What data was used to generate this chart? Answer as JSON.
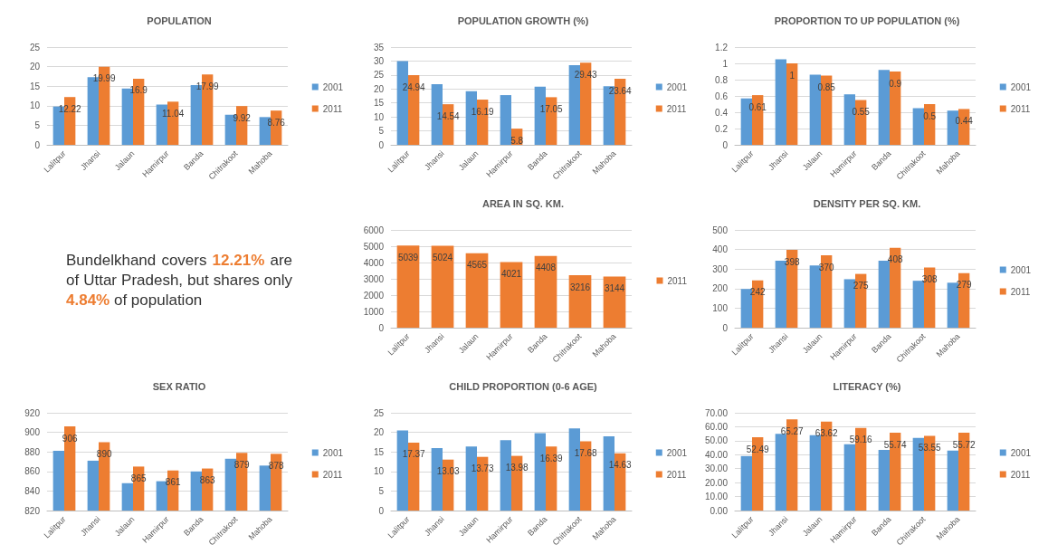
{
  "chart_data": [
    {
      "type": "bar",
      "title": "POPULATION",
      "categories": [
        "Lalitpur",
        "Jhansi",
        "Jalaun",
        "Hamirpur",
        "Banda",
        "Chitrakoot",
        "Mahoba"
      ],
      "series": [
        {
          "name": "2001",
          "color": "#5b9bd5",
          "values": [
            9.8,
            17.3,
            14.4,
            10.3,
            15.3,
            7.7,
            7.1
          ]
        },
        {
          "name": "2011",
          "color": "#ed7d31",
          "values": [
            12.22,
            19.99,
            16.9,
            11.04,
            17.99,
            9.92,
            8.76
          ],
          "value_labels": [
            "12.22",
            "19.99",
            "16.9",
            "11.04",
            "17.99",
            "9.92",
            "8.76"
          ]
        }
      ],
      "ylim": [
        0,
        25
      ],
      "yticks": [
        0,
        5,
        10,
        15,
        20,
        25
      ],
      "grid": "y",
      "legend": "right"
    },
    {
      "type": "bar",
      "title": "POPULATION GROWTH (%)",
      "categories": [
        "Lalitpur",
        "Jhansi",
        "Jalaun",
        "Hamirpur",
        "Banda",
        "Chitrakoot",
        "Mahoba"
      ],
      "series": [
        {
          "name": "2001",
          "color": "#5b9bd5",
          "values": [
            30,
            21.7,
            19.2,
            17.8,
            20.8,
            28.5,
            21
          ]
        },
        {
          "name": "2011",
          "color": "#ed7d31",
          "values": [
            24.94,
            14.54,
            16.19,
            5.8,
            17.05,
            29.43,
            23.64
          ],
          "value_labels": [
            "24.94",
            "14.54",
            "16.19",
            "5.8",
            "17.05",
            "29.43",
            "23.64"
          ]
        }
      ],
      "ylim": [
        0,
        35
      ],
      "yticks": [
        0,
        5,
        10,
        15,
        20,
        25,
        30,
        35
      ],
      "grid": "y",
      "legend": "right"
    },
    {
      "type": "bar",
      "title": "PROPORTION TO UP POPULATION (%)",
      "categories": [
        "Lalitpur",
        "Jhansi",
        "Jalaun",
        "Hamirpur",
        "Banda",
        "Chitrakoot",
        "Mahoba"
      ],
      "series": [
        {
          "name": "2001",
          "color": "#5b9bd5",
          "values": [
            0.57,
            1.05,
            0.86,
            0.62,
            0.92,
            0.45,
            0.42
          ]
        },
        {
          "name": "2011",
          "color": "#ed7d31",
          "values": [
            0.61,
            1,
            0.85,
            0.55,
            0.9,
            0.5,
            0.44
          ],
          "value_labels": [
            "0.61",
            "1",
            "0.85",
            "0.55",
            "0.9",
            "0.5",
            "0.44"
          ]
        }
      ],
      "ylim": [
        0,
        1.2
      ],
      "yticks": [
        0,
        0.2,
        0.4,
        0.6,
        0.8,
        1,
        1.2
      ],
      "grid": "y",
      "legend": "right"
    },
    {
      "type": "other",
      "annotations": [
        "Bundelkhand covers 12.21% are of Uttar Pradesh, but shares only 4.84% of population"
      ]
    },
    {
      "type": "bar",
      "title": "AREA IN SQ. KM.",
      "categories": [
        "Lalitpur",
        "Jhansi",
        "Jalaun",
        "Hamirpur",
        "Banda",
        "Chitrakoot",
        "Mahoba"
      ],
      "series": [
        {
          "name": "2011",
          "color": "#ed7d31",
          "values": [
            5039,
            5024,
            4565,
            4021,
            4408,
            3216,
            3144
          ]
        }
      ],
      "data_labels": true,
      "ylim": [
        0,
        6000
      ],
      "yticks": [
        0,
        1000,
        2000,
        3000,
        4000,
        5000,
        6000
      ],
      "grid": "y",
      "legend": "right"
    },
    {
      "type": "bar",
      "title": "DENSITY PER SQ. KM.",
      "categories": [
        "Lalitpur",
        "Jhansi",
        "Jalaun",
        "Hamirpur",
        "Banda",
        "Chitrakoot",
        "Mahoba"
      ],
      "series": [
        {
          "name": "2001",
          "color": "#5b9bd5",
          "values": [
            198,
            343,
            318,
            248,
            343,
            240,
            230
          ]
        },
        {
          "name": "2011",
          "color": "#ed7d31",
          "values": [
            242,
            398,
            370,
            275,
            408,
            308,
            279
          ],
          "value_labels": [
            "242",
            "398",
            "370",
            "275",
            "408",
            "308",
            "279"
          ]
        }
      ],
      "ylim": [
        0,
        500
      ],
      "yticks": [
        0,
        100,
        200,
        300,
        400,
        500
      ],
      "grid": "y",
      "legend": "right"
    },
    {
      "type": "bar",
      "title": "SEX RATIO",
      "categories": [
        "Lalitpur",
        "Jhansi",
        "Jalaun",
        "Hamirpur",
        "Banda",
        "Chitrakoot",
        "Mahoba"
      ],
      "series": [
        {
          "name": "2001",
          "color": "#5b9bd5",
          "values": [
            881,
            871,
            848,
            850,
            860,
            873,
            866
          ]
        },
        {
          "name": "2011",
          "color": "#ed7d31",
          "values": [
            906,
            890,
            865,
            861,
            863,
            879,
            878
          ],
          "value_labels": [
            "906",
            "890",
            "865",
            "861",
            "863",
            "879",
            "878"
          ]
        }
      ],
      "ylim": [
        820,
        920
      ],
      "yticks": [
        820,
        840,
        860,
        880,
        900,
        920
      ],
      "grid": "y",
      "legend": "right"
    },
    {
      "type": "bar",
      "title": "CHILD PROPORTION (0-6 AGE)",
      "categories": [
        "Lalitpur",
        "Jhansi",
        "Jalaun",
        "Hamirpur",
        "Banda",
        "Chitrakoot",
        "Mahoba"
      ],
      "series": [
        {
          "name": "2001",
          "color": "#5b9bd5",
          "values": [
            20.5,
            16,
            16.4,
            18,
            19.8,
            21,
            19
          ]
        },
        {
          "name": "2011",
          "color": "#ed7d31",
          "values": [
            17.37,
            13.03,
            13.73,
            13.98,
            16.39,
            17.68,
            14.63
          ],
          "value_labels": [
            "17.37",
            "13.03",
            "13.73",
            "13.98",
            "16.39",
            "17.68",
            "14.63"
          ]
        }
      ],
      "ylim": [
        0,
        25
      ],
      "yticks": [
        0,
        5,
        10,
        15,
        20,
        25
      ],
      "grid": "y",
      "legend": "right"
    },
    {
      "type": "bar",
      "title": "LITERACY (%)",
      "categories": [
        "Lalitpur",
        "Jhansi",
        "Jalaun",
        "Hamirpur",
        "Banda",
        "Chitrakoot",
        "Mahoba"
      ],
      "series": [
        {
          "name": "2001",
          "color": "#5b9bd5",
          "values": [
            39,
            55,
            54,
            47.5,
            43.5,
            52,
            43
          ]
        },
        {
          "name": "2011",
          "color": "#ed7d31",
          "values": [
            52.49,
            65.27,
            63.62,
            59.16,
            55.74,
            53.55,
            55.72
          ],
          "value_labels": [
            "52.49",
            "65.27",
            "63.62",
            "59.16",
            "55.74",
            "53.55",
            "55.72"
          ]
        }
      ],
      "ylim": [
        0,
        70
      ],
      "yticks": [
        {
          "value": 0,
          "label": "0.00"
        },
        {
          "value": 10,
          "label": "10.00"
        },
        {
          "value": 20,
          "label": "20.00"
        },
        {
          "value": 30,
          "label": "30.00"
        },
        {
          "value": 40,
          "label": "40.00"
        },
        {
          "value": 50,
          "label": "50.00"
        },
        {
          "value": 60,
          "label": "60.00"
        },
        {
          "value": 70,
          "label": "70.00"
        }
      ],
      "grid": "y",
      "legend": "right"
    }
  ]
}
